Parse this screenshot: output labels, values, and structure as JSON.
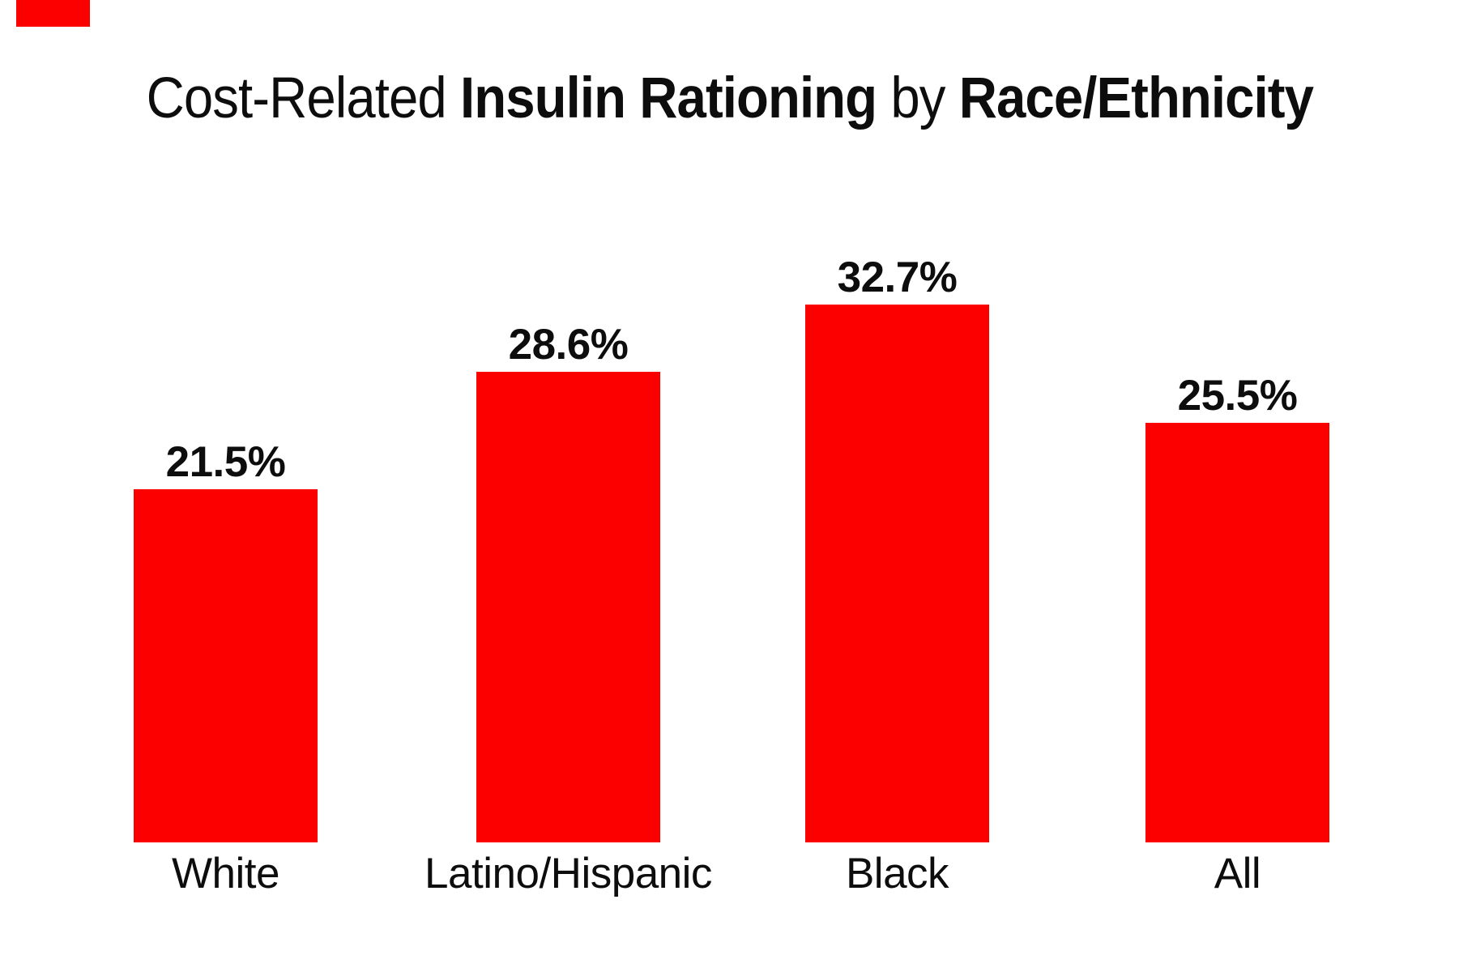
{
  "page": {
    "background": "#ffffff",
    "text_color": "#0d0d0d"
  },
  "title": {
    "regular1": "Cost-Related ",
    "bold1": "Insulin Rationing",
    "regular2": " by ",
    "bold2": "Race/Ethnicity",
    "full": "Cost-Related Insulin Rationing by Race/Ethnicity"
  },
  "decorations": {
    "top_left_accent_color": "#fc0000"
  },
  "chart_data": {
    "type": "bar",
    "title": "Cost-Related Insulin Rationing by Race/Ethnicity",
    "categories": [
      "White",
      "Latino/Hispanic",
      "Black",
      "All"
    ],
    "values": [
      21.5,
      28.6,
      32.7,
      25.5
    ],
    "value_labels": [
      "21.5%",
      "28.6%",
      "32.7%",
      "25.5%"
    ],
    "unit": "percent",
    "orientation": "vertical",
    "bar_color": "#fc0000",
    "label_color": "#0d0d0d",
    "ylim": [
      0,
      35
    ],
    "grid": false,
    "axes_visible": false,
    "legend_position": "none",
    "value_label_position": "above-bar"
  }
}
